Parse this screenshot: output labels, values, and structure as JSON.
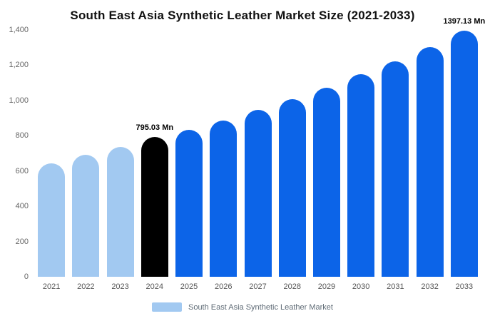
{
  "title": "South East Asia Synthetic Leather Market Size (2021-2033)",
  "chart_data": {
    "type": "bar",
    "categories": [
      "2021",
      "2022",
      "2023",
      "2024",
      "2025",
      "2026",
      "2027",
      "2028",
      "2029",
      "2030",
      "2031",
      "2032",
      "2033"
    ],
    "series": [
      {
        "name": "South East Asia Synthetic Leather Market",
        "values": [
          645,
          692,
          738,
          795.03,
          833,
          888,
          945,
          1008,
          1072,
          1148,
          1222,
          1302,
          1397.13
        ]
      }
    ],
    "bar_roles": [
      "historical",
      "historical",
      "historical",
      "highlight",
      "forecast",
      "forecast",
      "forecast",
      "forecast",
      "forecast",
      "forecast",
      "forecast",
      "forecast",
      "forecast"
    ],
    "colors": {
      "historical": "#a2c9f1",
      "highlight": "#000000",
      "forecast": "#0c64e8",
      "axis_text": "#555555",
      "title_text": "#111111"
    },
    "annotations": {
      "3": "795.03 Mn",
      "12": "1397.13 Mn"
    },
    "ylim": [
      0,
      1400
    ],
    "yticks": [
      "0",
      "200",
      "400",
      "600",
      "800",
      "1,000",
      "1,200",
      "1,400"
    ],
    "grid": false,
    "legend_position": "bottom",
    "legend": [
      {
        "label": "South East Asia Synthetic Leather Market",
        "color": "#a2c9f1"
      }
    ],
    "xlabel": "",
    "ylabel": ""
  }
}
